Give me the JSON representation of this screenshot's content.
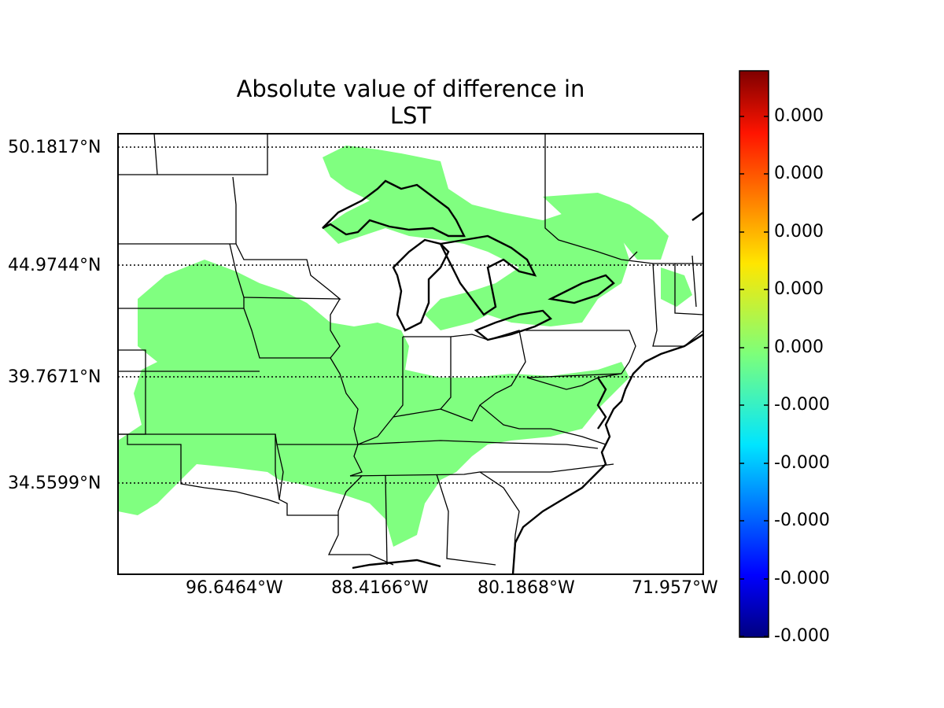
{
  "figure": {
    "title_line1": "Absolute value of difference in",
    "title_line2": "LST"
  },
  "map": {
    "parallels": [
      "50.1817°N",
      "44.9744°N",
      "39.7671°N",
      "34.5599°N"
    ],
    "meridians": [
      "96.6464°W",
      "88.4166°W",
      "80.1868°W",
      "71.957°W"
    ],
    "data_fill_color": "#80ff80",
    "gridline_style": "dotted"
  },
  "colorbar": {
    "colormap": "jet",
    "tick_labels": [
      "0.000",
      "0.000",
      "0.000",
      "0.000",
      "0.000",
      "-0.000",
      "-0.000",
      "-0.000",
      "-0.000",
      "-0.000"
    ]
  }
}
